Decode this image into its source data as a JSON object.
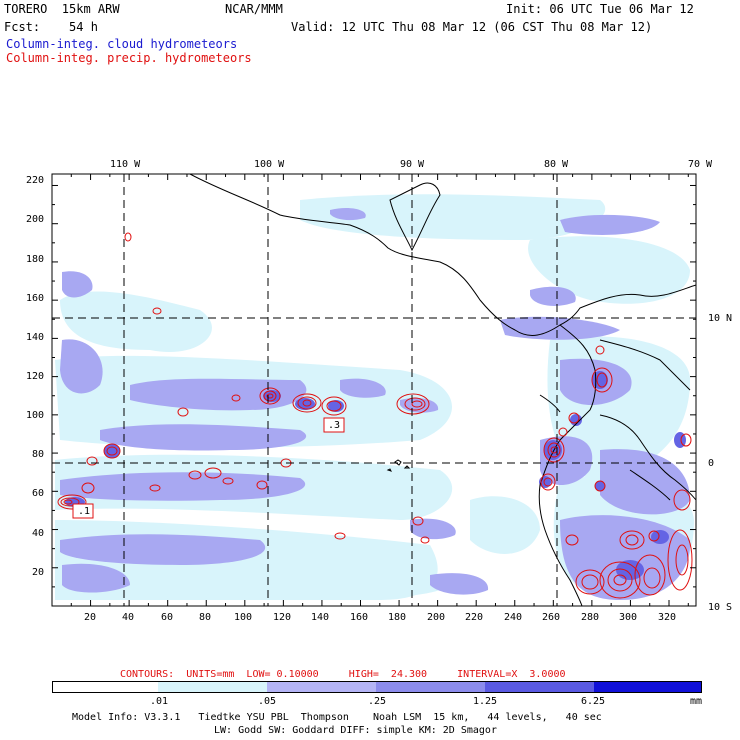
{
  "header": {
    "model": "TORERO  15km ARW",
    "org": "NCAR/MMM",
    "init": "Init: 06 UTC Tue 06 Mar 12",
    "fcst": "Fcst:    54 h",
    "valid": "Valid: 12 UTC Thu 08 Mar 12 (06 CST Thu 08 Mar 12)",
    "field1": "Column-integ. cloud hydrometeors",
    "field2": "Column-integ. precip. hydrometeors"
  },
  "colors": {
    "cloud_blue": "#1a1ad0",
    "precip_red": "#e01010",
    "shade_1": "#ffffff",
    "shade_2": "#d8f4fb",
    "shade_3": "#b4b4f5",
    "shade_4": "#9696ee",
    "shade_5": "#6464e4",
    "shade_6": "#3232dc",
    "shade_7": "#1010d8"
  },
  "axes": {
    "top_lon_labels": [
      "110 W",
      "100 W",
      "90 W",
      "80 W",
      "70 W"
    ],
    "right_lat_labels": [
      "10 N",
      "0",
      "10 S"
    ],
    "y_ticks": [
      "220",
      "200",
      "180",
      "160",
      "140",
      "120",
      "100",
      "80",
      "60",
      "40",
      "20"
    ],
    "x_ticks": [
      "20",
      "40",
      "60",
      "80",
      "100",
      "120",
      "140",
      "160",
      "180",
      "200",
      "220",
      "240",
      "260",
      "280",
      "300",
      "320"
    ],
    "x_range": [
      0,
      334
    ],
    "y_range": [
      0,
      226
    ]
  },
  "contour_labels": [
    ".1",
    ".3"
  ],
  "contours_info": "CONTOURS:  UNITS=mm  LOW= 0.10000     HIGH=  24.300     INTERVAL=X  3.0000",
  "colorbar": {
    "levels": [
      ".01",
      ".05",
      ".25",
      "1.25",
      "6.25"
    ],
    "units": "mm"
  },
  "footer": {
    "line1": "Model Info: V3.3.1   Tiedtke YSU PBL  Thompson    Noah LSM  15 km,   44 levels,   40 sec",
    "line2": "LW: Godd SW: Goddard DIFF: simple KM: 2D Smagor"
  }
}
